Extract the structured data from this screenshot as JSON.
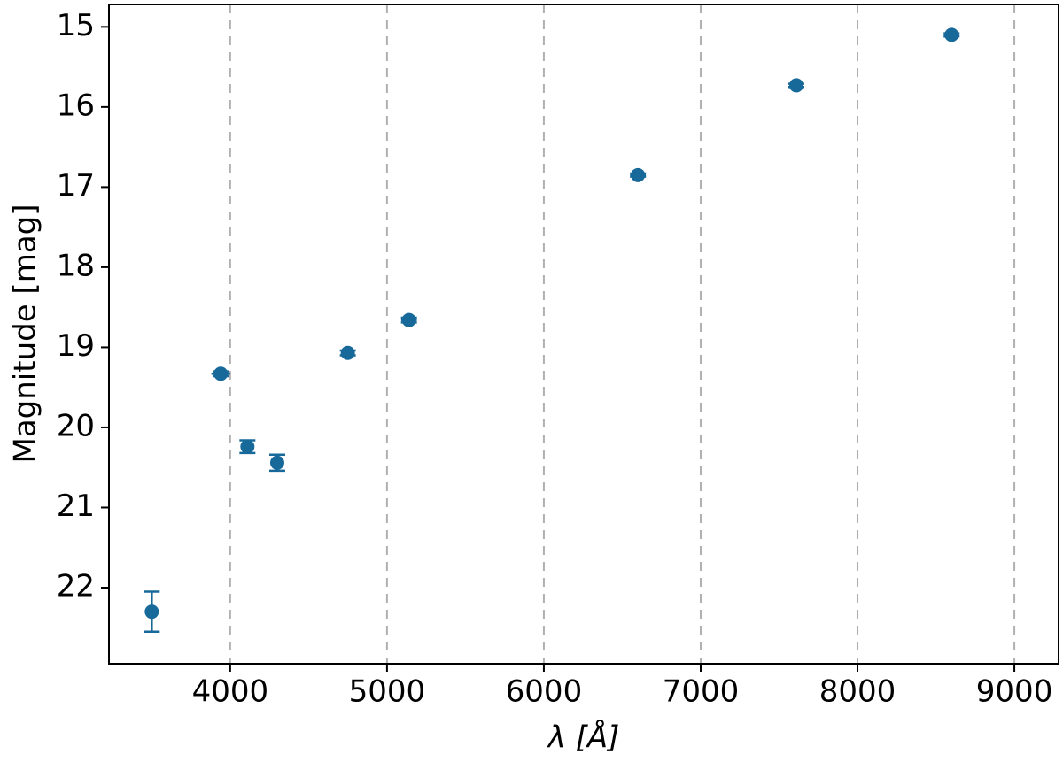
{
  "chart_data": {
    "type": "scatter",
    "xlabel": "λ [Å]",
    "ylabel": "Magnitude [mag]",
    "x": [
      3500,
      3940,
      4110,
      4300,
      4750,
      5140,
      6600,
      7610,
      8600
    ],
    "y": [
      22.3,
      19.33,
      20.24,
      20.44,
      19.07,
      18.66,
      16.85,
      15.73,
      15.1
    ],
    "yerr": [
      0.25,
      0.03,
      0.08,
      0.1,
      0.03,
      0.03,
      0.02,
      0.02,
      0.02
    ],
    "xerr": [
      0,
      60,
      0,
      0,
      40,
      50,
      50,
      40,
      40
    ],
    "color": "#17699a",
    "xlim": [
      3227,
      9282
    ],
    "xticks": [
      4000,
      5000,
      6000,
      7000,
      8000,
      9000
    ],
    "ylim": [
      14.72,
      22.95
    ],
    "yticks": [
      15,
      16,
      17,
      18,
      19,
      20,
      21,
      22
    ],
    "y_inverted": true,
    "grid": "x"
  }
}
